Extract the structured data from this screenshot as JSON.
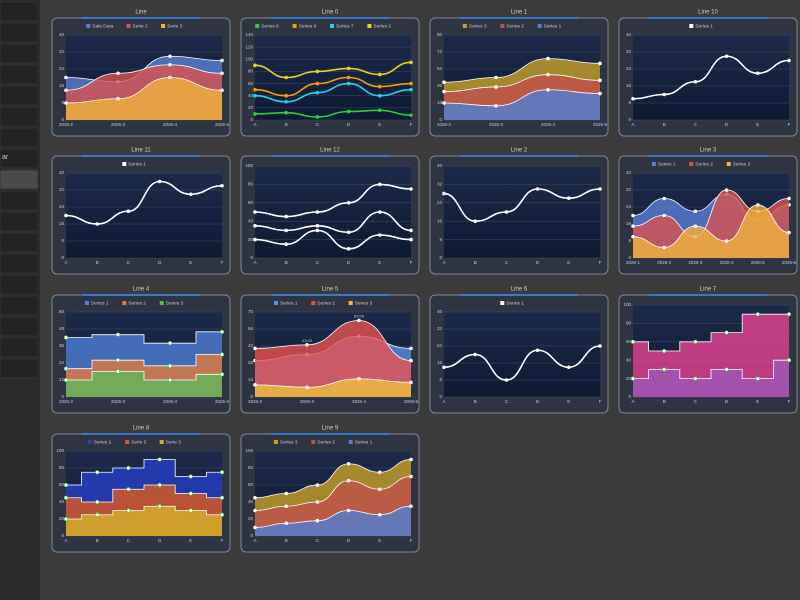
{
  "sidebar": {
    "partial_label": "ar"
  },
  "cards": [
    {
      "title": "Line",
      "style": "area",
      "legend": true,
      "x": [
        "2026-2",
        "2026-3",
        "2026-4",
        "2026-5"
      ],
      "ylim": [
        0,
        40
      ],
      "yticks": [
        0,
        8,
        16,
        24,
        32,
        40
      ],
      "series": [
        {
          "name": "Sale Data",
          "color": "#5b7fd6",
          "values": [
            20,
            18,
            30,
            28
          ]
        },
        {
          "name": "Serie 2",
          "color": "#d9534f",
          "values": [
            14,
            22,
            26,
            22
          ]
        },
        {
          "name": "Serie 3",
          "color": "#f0b43c",
          "values": [
            8,
            10,
            20,
            14
          ]
        }
      ]
    },
    {
      "title": "Line 0",
      "style": "line",
      "legend": true,
      "x": [
        "A",
        "B",
        "C",
        "D",
        "E",
        "F"
      ],
      "ylim": [
        0,
        140
      ],
      "yticks": [
        0,
        20,
        40,
        60,
        80,
        100,
        120,
        140
      ],
      "series": [
        {
          "name": "Series 6",
          "color": "#2ecc40",
          "values": [
            10,
            12,
            5,
            14,
            16,
            8
          ]
        },
        {
          "name": "Series 8",
          "color": "#f39c12",
          "values": [
            50,
            40,
            60,
            70,
            55,
            60
          ]
        },
        {
          "name": "Series 7",
          "color": "#22d3ee",
          "values": [
            40,
            30,
            45,
            60,
            40,
            50
          ]
        },
        {
          "name": "Series 2",
          "color": "#e6d02a",
          "values": [
            90,
            70,
            80,
            85,
            75,
            95
          ]
        }
      ]
    },
    {
      "title": "Line 1",
      "style": "area",
      "legend": true,
      "x": [
        "2026-2",
        "2026-3",
        "2026-4",
        "2026-5"
      ],
      "ylim": [
        0,
        90
      ],
      "yticks": [
        0,
        18,
        36,
        54,
        72,
        90
      ],
      "series": [
        {
          "name": "Series 3",
          "color": "#c9a227",
          "values": [
            40,
            45,
            65,
            60
          ]
        },
        {
          "name": "Series 2",
          "color": "#c0504d",
          "values": [
            30,
            35,
            48,
            42
          ]
        },
        {
          "name": "Series 1",
          "color": "#4f7fd6",
          "values": [
            18,
            15,
            32,
            28
          ]
        }
      ]
    },
    {
      "title": "Line 10",
      "style": "line",
      "legend": true,
      "x": [
        "A",
        "B",
        "C",
        "D",
        "E",
        "F"
      ],
      "ylim": [
        0,
        40
      ],
      "yticks": [
        0,
        8,
        16,
        24,
        32,
        40
      ],
      "series": [
        {
          "name": "Series 1",
          "color": "#ffffff",
          "values": [
            10,
            12,
            18,
            30,
            22,
            28
          ]
        }
      ]
    },
    {
      "title": "Line 11",
      "style": "line",
      "legend": true,
      "x": [
        "A",
        "B",
        "C",
        "D",
        "E",
        "F"
      ],
      "ylim": [
        0,
        40
      ],
      "yticks": [
        0,
        8,
        16,
        24,
        32,
        40
      ],
      "series": [
        {
          "name": "Series 1",
          "color": "#ffffff",
          "values": [
            20,
            16,
            22,
            36,
            30,
            34
          ]
        }
      ]
    },
    {
      "title": "Line 12",
      "style": "line",
      "legend": false,
      "x": [
        "A",
        "B",
        "C",
        "D",
        "E",
        "F"
      ],
      "ylim": [
        0,
        100
      ],
      "yticks": [
        0,
        20,
        40,
        60,
        80,
        100
      ],
      "series": [
        {
          "color": "#ffffff",
          "values": [
            50,
            45,
            50,
            60,
            80,
            75
          ]
        },
        {
          "color": "#ffffff",
          "values": [
            35,
            30,
            35,
            28,
            50,
            30
          ]
        },
        {
          "color": "#ffffff",
          "values": [
            20,
            15,
            30,
            10,
            25,
            20
          ]
        }
      ]
    },
    {
      "title": "Line 2",
      "style": "line",
      "legend": false,
      "x": [
        "A",
        "B",
        "C",
        "D",
        "E",
        "F"
      ],
      "ylim": [
        0,
        40
      ],
      "yticks": [
        0,
        8,
        16,
        24,
        32,
        40
      ],
      "series": [
        {
          "color": "#ffffff",
          "values": [
            28,
            16,
            20,
            30,
            26,
            30
          ]
        }
      ]
    },
    {
      "title": "Line 3",
      "style": "area",
      "legend": true,
      "x": [
        "2026-1",
        "2026-2",
        "2026-3",
        "2026-4",
        "2026-5",
        "2026-6"
      ],
      "ylim": [
        0,
        40
      ],
      "yticks": [
        0,
        8,
        16,
        24,
        32,
        40
      ],
      "series": [
        {
          "name": "Series 1",
          "color": "#5b7fd6",
          "values": [
            20,
            28,
            22,
            30,
            18,
            25
          ]
        },
        {
          "name": "Series 2",
          "color": "#d9534f",
          "values": [
            15,
            20,
            10,
            32,
            22,
            28
          ]
        },
        {
          "name": "Series 3",
          "color": "#f0b43c",
          "values": [
            10,
            5,
            15,
            8,
            25,
            12
          ]
        }
      ]
    },
    {
      "title": "Line 4",
      "style": "step",
      "legend": true,
      "x": [
        "2026-2",
        "2026-3",
        "2026-4",
        "2026-5"
      ],
      "ylim": [
        0,
        60
      ],
      "yticks": [
        0,
        12,
        24,
        36,
        48,
        60
      ],
      "series": [
        {
          "name": "Series 1",
          "color": "#4f7fd6",
          "values": [
            42,
            44,
            38,
            46
          ]
        },
        {
          "name": "Series 2",
          "color": "#e07b39",
          "values": [
            20,
            26,
            22,
            30
          ]
        },
        {
          "name": "Series 3",
          "color": "#5cb85c",
          "values": [
            12,
            18,
            12,
            16
          ]
        }
      ]
    },
    {
      "title": "Line 5",
      "style": "area",
      "legend": true,
      "x": [
        "2026-2",
        "2026-3",
        "2026-4",
        "2026-5"
      ],
      "ylim": [
        0,
        70
      ],
      "yticks": [
        0,
        14,
        28,
        42,
        56,
        70
      ],
      "series": [
        {
          "name": "Series 1",
          "color": "#5b8fe6",
          "values": [
            30,
            35,
            50,
            40
          ]
        },
        {
          "name": "Series 2",
          "color": "#e8534f",
          "values": [
            40,
            43,
            63,
            30
          ],
          "value_labels": [
            null,
            "43.00",
            "63.00",
            null
          ]
        },
        {
          "name": "Series 3",
          "color": "#f0c040",
          "values": [
            10,
            8,
            15,
            12
          ]
        }
      ]
    },
    {
      "title": "Line 6",
      "style": "line",
      "legend": true,
      "x": [
        "A",
        "B",
        "C",
        "D",
        "E",
        "F"
      ],
      "ylim": [
        0,
        40
      ],
      "yticks": [
        0,
        8,
        16,
        24,
        32,
        40
      ],
      "series": [
        {
          "name": "Series 1",
          "color": "#ffffff",
          "values": [
            14,
            20,
            8,
            22,
            14,
            24
          ]
        }
      ]
    },
    {
      "title": "Line 7",
      "style": "step",
      "legend": false,
      "x": [
        "A",
        "B",
        "C",
        "D",
        "E",
        "F"
      ],
      "ylim": [
        0,
        100
      ],
      "yticks": [
        0,
        20,
        40,
        60,
        80,
        100
      ],
      "series": [
        {
          "color": "#e84393",
          "values": [
            60,
            50,
            60,
            70,
            90,
            90
          ]
        },
        {
          "color": "#9b59b6",
          "values": [
            20,
            30,
            20,
            30,
            20,
            40
          ]
        }
      ]
    },
    {
      "title": "Line 8",
      "style": "step",
      "legend": true,
      "x": [
        "A",
        "B",
        "C",
        "D",
        "E",
        "F"
      ],
      "ylim": [
        0,
        100
      ],
      "yticks": [
        0,
        20,
        40,
        60,
        80,
        100
      ],
      "series": [
        {
          "name": "Series 1",
          "color": "#2540c8",
          "values": [
            60,
            75,
            80,
            90,
            70,
            75
          ]
        },
        {
          "name": "Serie 2",
          "color": "#e05a1a",
          "values": [
            45,
            40,
            55,
            60,
            50,
            45
          ]
        },
        {
          "name": "Serie 3",
          "color": "#d6b12a",
          "values": [
            20,
            25,
            30,
            35,
            30,
            25
          ]
        }
      ]
    },
    {
      "title": "Line 9",
      "style": "area",
      "legend": true,
      "x": [
        "A",
        "B",
        "C",
        "D",
        "E",
        "F"
      ],
      "ylim": [
        0,
        100
      ],
      "yticks": [
        0,
        20,
        40,
        60,
        80,
        100
      ],
      "series": [
        {
          "name": "Series 3",
          "color": "#c9a227",
          "values": [
            45,
            50,
            60,
            85,
            75,
            90
          ]
        },
        {
          "name": "Series 2",
          "color": "#c0504d",
          "values": [
            30,
            35,
            40,
            65,
            55,
            70
          ]
        },
        {
          "name": "Series 1",
          "color": "#4f7fd6",
          "values": [
            10,
            15,
            18,
            30,
            25,
            35
          ]
        }
      ]
    }
  ]
}
